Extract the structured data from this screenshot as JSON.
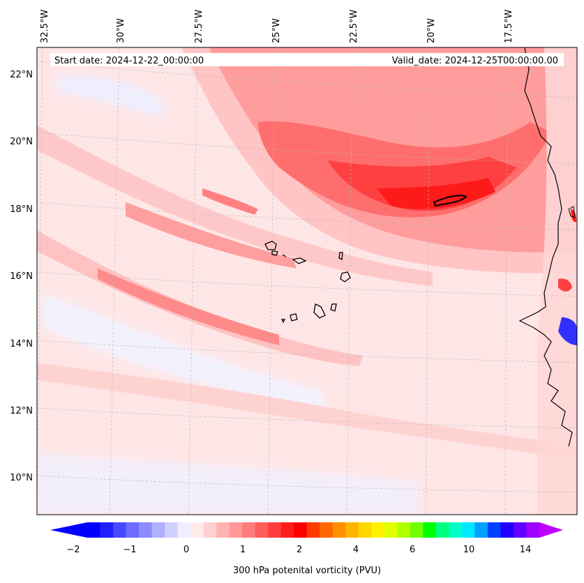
{
  "header": {
    "start_date": "Start date: 2024-12-22_00:00:00",
    "valid_date": "Valid_date: 2024-12-25T00:00:00.00"
  },
  "map": {
    "lon_labels": [
      "32.5°W",
      "30°W",
      "27.5°W",
      "25°W",
      "22.5°W",
      "20°W",
      "17.5°W"
    ],
    "lat_labels": [
      "22°N",
      "20°N",
      "18°N",
      "16°N",
      "14°N",
      "12°N",
      "10°N"
    ],
    "gridlines": "dashed"
  },
  "colorbar": {
    "title": "300 hPa potenital vorticity (PVU)",
    "tick_labels": [
      "−2",
      "−1",
      "0",
      "1",
      "2",
      "4",
      "6",
      "10",
      "14"
    ],
    "colors": [
      "#0000ff",
      "#2020ff",
      "#4848ff",
      "#6c6cff",
      "#8c8cff",
      "#b0b0ff",
      "#d0d0ff",
      "#eeeeff",
      "#ffeaea",
      "#ffd0d0",
      "#ffb4b4",
      "#ff9898",
      "#ff7c7c",
      "#ff5c5c",
      "#ff3c3c",
      "#ff1c1c",
      "#ff0000",
      "#ff3a00",
      "#ff6600",
      "#ff9000",
      "#ffb400",
      "#ffd800",
      "#fff200",
      "#e0ff00",
      "#b0ff00",
      "#70ff00",
      "#00ff00",
      "#00ff80",
      "#00ffc8",
      "#00e8ff",
      "#00a0ff",
      "#0040ff",
      "#2000ff",
      "#6000ff",
      "#a000ff"
    ],
    "extend_low_color": "#0000ff",
    "extend_high_color": "#c000ff"
  },
  "colors": {
    "background_field": "#ffe4e4",
    "band_light": "#ffc8c8",
    "band_mid": "#ff9c9c",
    "band_strong": "#ff6a6a",
    "core": "#ff2020",
    "blue_light": "#ececff",
    "blue_strong": "#3030ff",
    "coast": "#000000"
  }
}
